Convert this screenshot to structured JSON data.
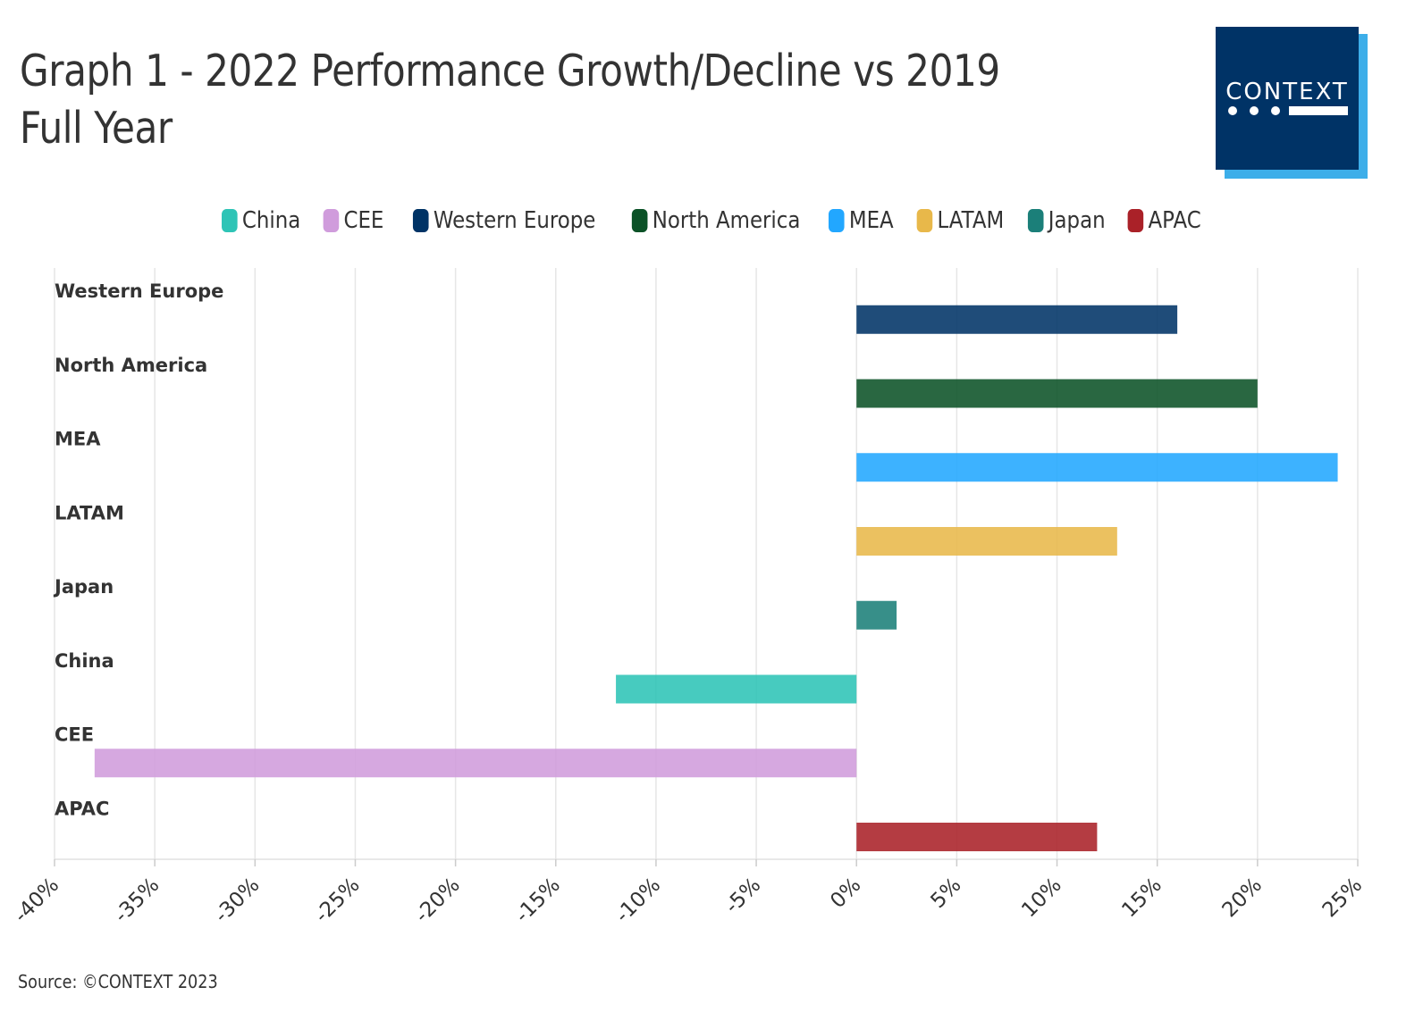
{
  "title": "Graph 1 - 2022 Performance Growth/Decline vs 2019 Full Year",
  "logo": {
    "text": "CONTEXT",
    "colors": {
      "front": "#003366",
      "back": "#3daee9"
    }
  },
  "source": "Source: ©CONTEXT 2023",
  "chart_data": {
    "type": "bar",
    "orientation": "horizontal",
    "title": "Graph 1 - 2022 Performance Growth/Decline vs 2019 Full Year",
    "xlabel": "",
    "ylabel": "",
    "xlim": [
      -40,
      25
    ],
    "x_ticks": [
      -40,
      -35,
      -30,
      -25,
      -20,
      -15,
      -10,
      -5,
      0,
      5,
      10,
      15,
      20,
      25
    ],
    "x_tick_labels": [
      "-40%",
      "-35%",
      "-30%",
      "-25%",
      "-20%",
      "-15%",
      "-10%",
      "-5%",
      "0%",
      "5%",
      "10%",
      "15%",
      "20%",
      "25%"
    ],
    "grid": "vertical",
    "legend_position": "top-center",
    "legend": [
      {
        "name": "China",
        "color": "#2ec4b6"
      },
      {
        "name": "CEE",
        "color": "#d09cdc"
      },
      {
        "name": "Western Europe",
        "color": "#003366"
      },
      {
        "name": "North America",
        "color": "#0b5227"
      },
      {
        "name": "MEA",
        "color": "#22a7ff"
      },
      {
        "name": "LATAM",
        "color": "#e8b84a"
      },
      {
        "name": "Japan",
        "color": "#1b7f79"
      },
      {
        "name": "APAC",
        "color": "#aa2128"
      }
    ],
    "categories": [
      "Western Europe",
      "North America",
      "MEA",
      "LATAM",
      "Japan",
      "China",
      "CEE",
      "APAC"
    ],
    "values": [
      16,
      20,
      24,
      13,
      2,
      -12,
      -38,
      12
    ],
    "colors": [
      "#003366",
      "#0b5227",
      "#22a7ff",
      "#e8b84a",
      "#1b7f79",
      "#2ec4b6",
      "#d09cdc",
      "#aa2128"
    ],
    "unit": "%"
  }
}
